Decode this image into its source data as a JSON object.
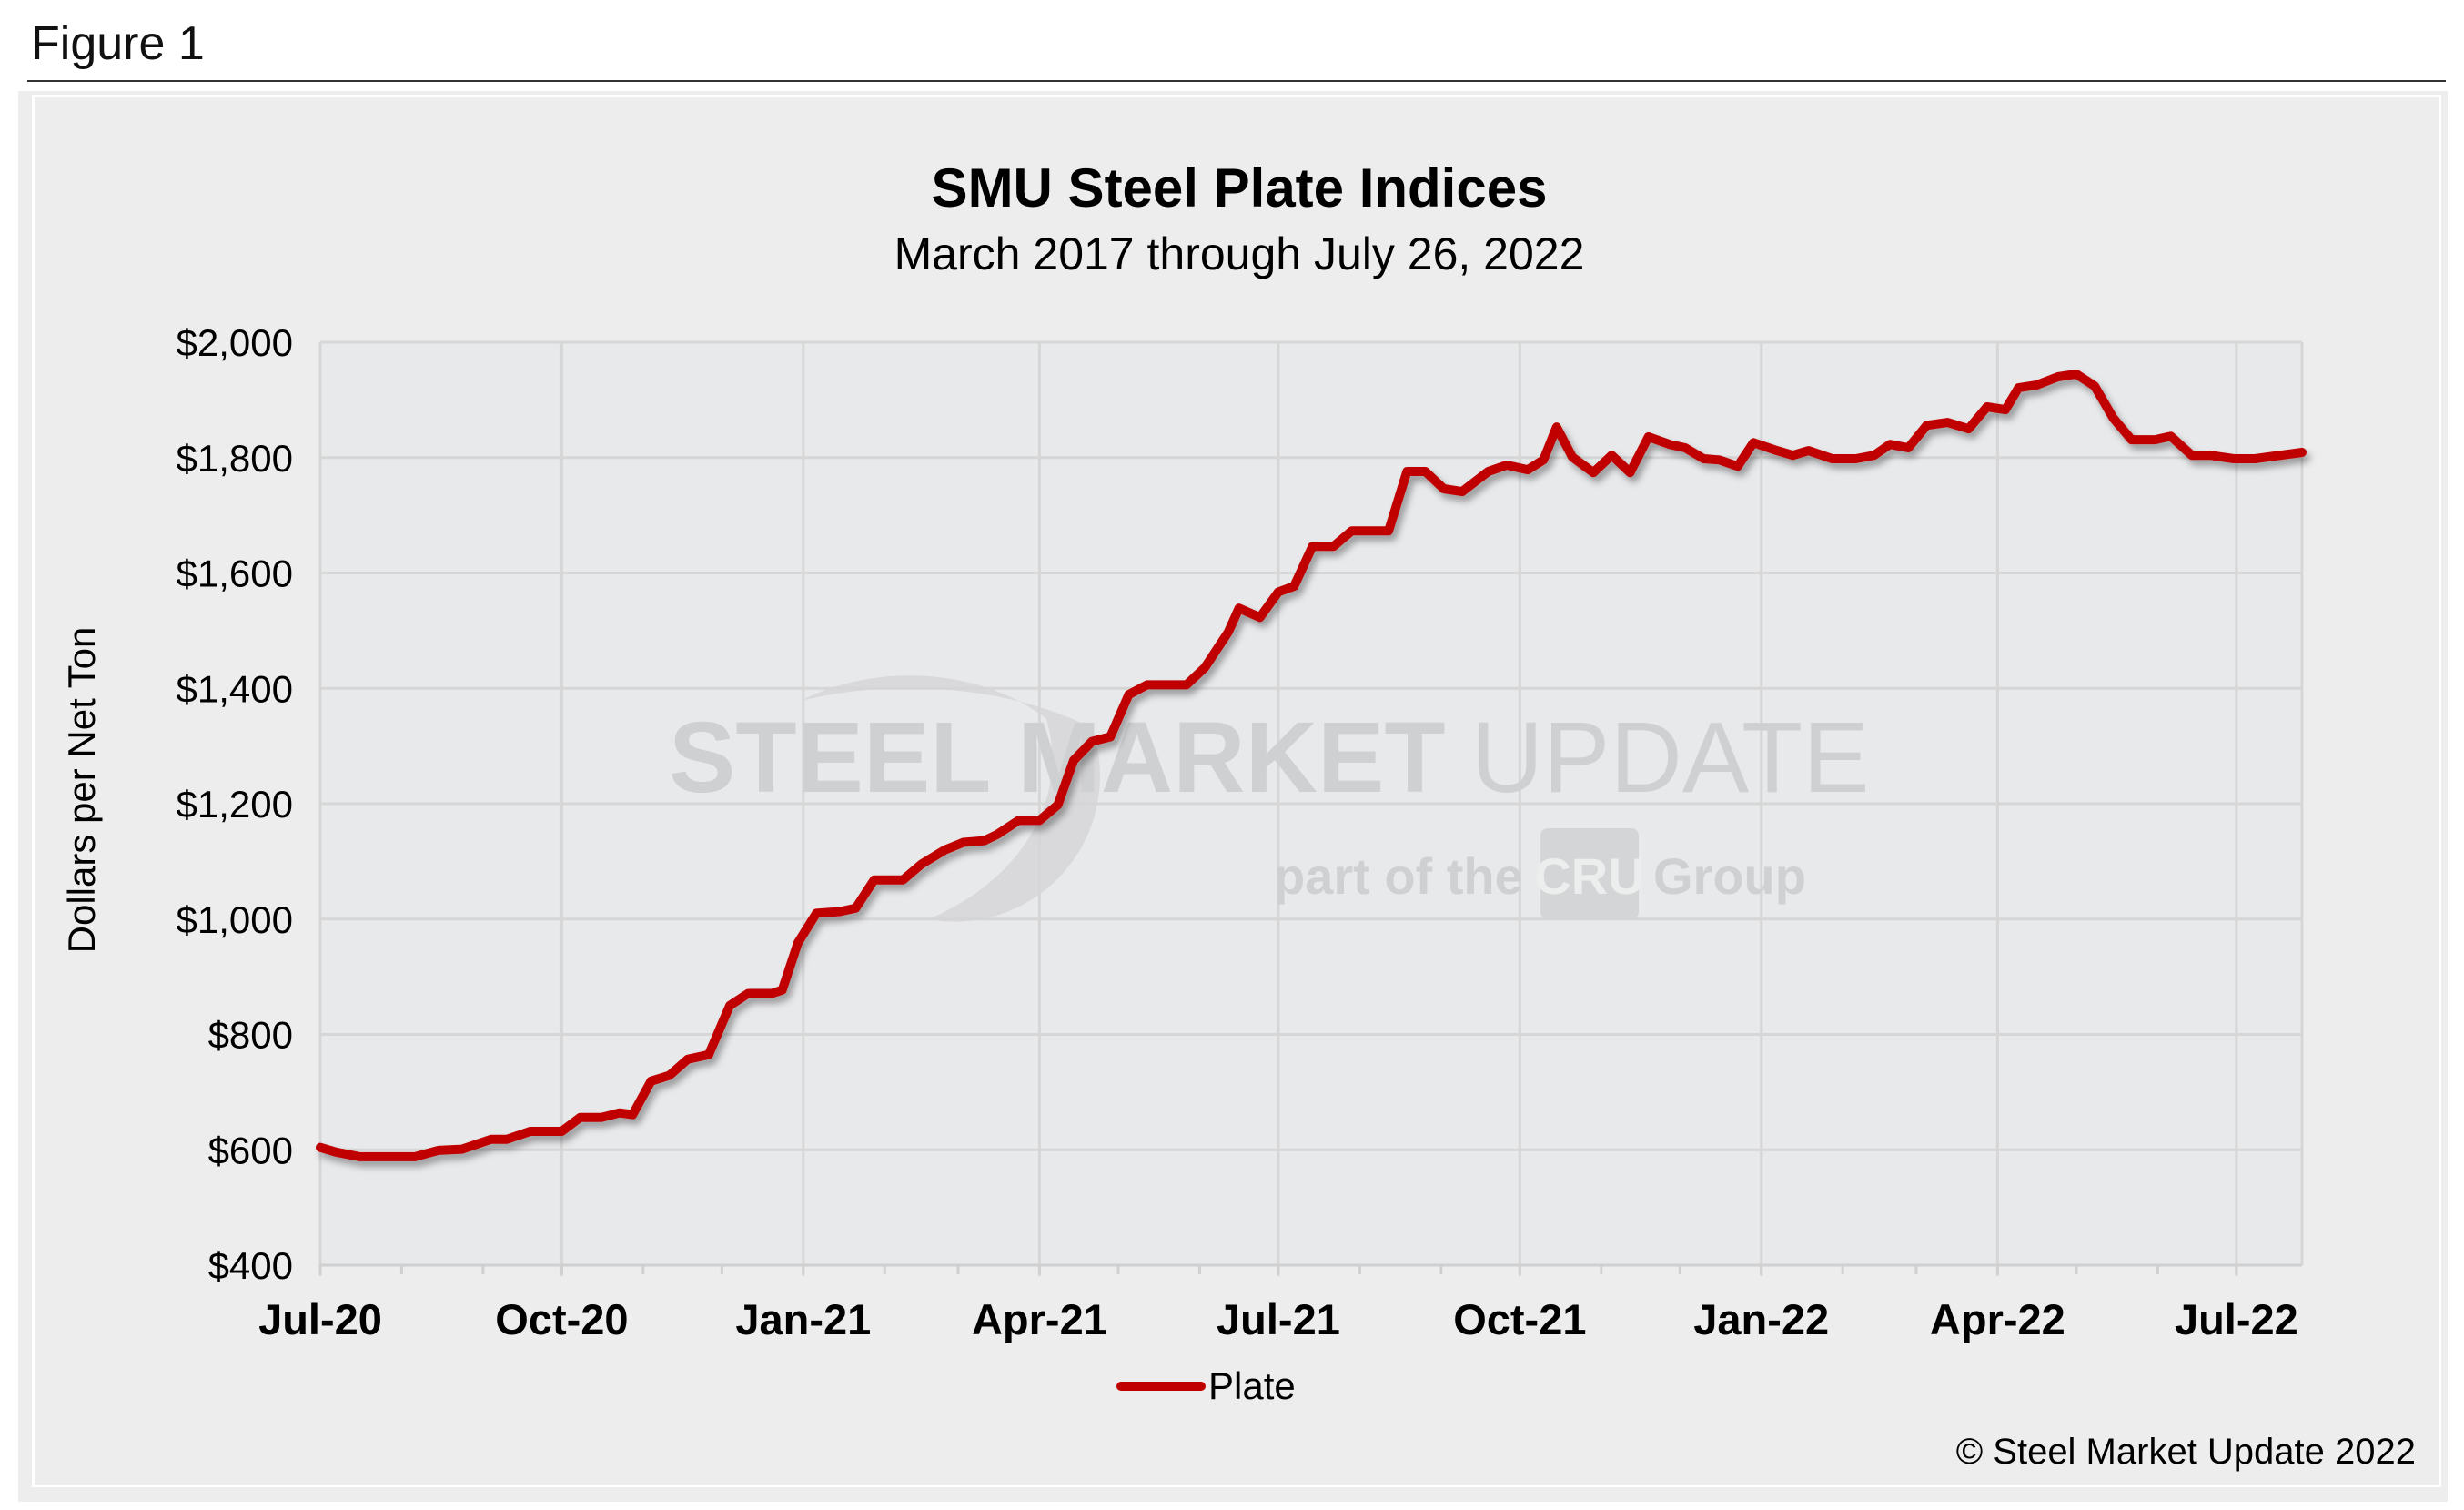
{
  "figure_label": "Figure 1",
  "copyright": "© Steel Market Update 2022",
  "watermark": {
    "line1_bold": "STEEL MARKET",
    "line1_light": "UPDATE",
    "line2_a": "part of the",
    "line2_logo": "CRU",
    "line2_b": "Group"
  },
  "colors": {
    "series": "#c00000",
    "plot_bg": "#e8e9eb",
    "frame_bg": "#ededed",
    "grid": "#d6d6d6"
  },
  "chart_data": {
    "type": "line",
    "title": "SMU Steel Plate Indices",
    "subtitle": "March 2017 through July 26, 2022",
    "xlabel": "",
    "ylabel": "Dollars per Net Ton",
    "ylim": [
      400,
      2000
    ],
    "yticks": [
      400,
      600,
      800,
      1000,
      1200,
      1400,
      1600,
      1800,
      2000
    ],
    "ytick_labels": [
      "$400",
      "$600",
      "$800",
      "$1,000",
      "$1,200",
      "$1,400",
      "$1,600",
      "$1,800",
      "$2,000"
    ],
    "xlim": [
      "2020-07-01",
      "2022-07-26"
    ],
    "xticks": [
      "2020-07-01",
      "2020-10-01",
      "2021-01-01",
      "2021-04-01",
      "2021-07-01",
      "2021-10-01",
      "2022-01-01",
      "2022-04-01",
      "2022-07-01"
    ],
    "xtick_labels": [
      "Jul-20",
      "Oct-20",
      "Jan-21",
      "Apr-21",
      "Jul-21",
      "Oct-21",
      "Jan-22",
      "Apr-22",
      "Jul-22"
    ],
    "grid": true,
    "legend": "bottom-center",
    "series": [
      {
        "name": "Plate",
        "color": "#c00000",
        "points": [
          [
            "2020-07-01",
            604
          ],
          [
            "2020-07-07",
            596
          ],
          [
            "2020-07-16",
            588
          ],
          [
            "2020-08-06",
            588
          ],
          [
            "2020-08-15",
            599
          ],
          [
            "2020-08-24",
            601
          ],
          [
            "2020-09-04",
            618
          ],
          [
            "2020-09-10",
            618
          ],
          [
            "2020-09-19",
            632
          ],
          [
            "2020-10-01",
            632
          ],
          [
            "2020-10-08",
            656
          ],
          [
            "2020-10-16",
            656
          ],
          [
            "2020-10-23",
            664
          ],
          [
            "2020-10-28",
            661
          ],
          [
            "2020-11-04",
            719
          ],
          [
            "2020-11-11",
            729
          ],
          [
            "2020-11-18",
            757
          ],
          [
            "2020-11-26",
            765
          ],
          [
            "2020-12-04",
            850
          ],
          [
            "2020-12-11",
            871
          ],
          [
            "2020-12-20",
            871
          ],
          [
            "2020-12-24",
            877
          ],
          [
            "2020-12-30",
            959
          ],
          [
            "2021-01-06",
            1010
          ],
          [
            "2021-01-15",
            1013
          ],
          [
            "2021-01-21",
            1019
          ],
          [
            "2021-01-28",
            1068
          ],
          [
            "2021-02-08",
            1068
          ],
          [
            "2021-02-15",
            1095
          ],
          [
            "2021-02-24",
            1120
          ],
          [
            "2021-03-03",
            1133
          ],
          [
            "2021-03-11",
            1136
          ],
          [
            "2021-03-16",
            1147
          ],
          [
            "2021-03-24",
            1171
          ],
          [
            "2021-04-01",
            1171
          ],
          [
            "2021-04-08",
            1198
          ],
          [
            "2021-04-14",
            1275
          ],
          [
            "2021-04-21",
            1308
          ],
          [
            "2021-04-28",
            1316
          ],
          [
            "2021-05-05",
            1389
          ],
          [
            "2021-05-12",
            1406
          ],
          [
            "2021-05-27",
            1406
          ],
          [
            "2021-06-03",
            1436
          ],
          [
            "2021-06-12",
            1498
          ],
          [
            "2021-06-16",
            1539
          ],
          [
            "2021-06-24",
            1523
          ],
          [
            "2021-07-01",
            1567
          ],
          [
            "2021-07-07",
            1577
          ],
          [
            "2021-07-14",
            1646
          ],
          [
            "2021-07-22",
            1646
          ],
          [
            "2021-07-29",
            1673
          ],
          [
            "2021-08-12",
            1673
          ],
          [
            "2021-08-19",
            1776
          ],
          [
            "2021-08-26",
            1776
          ],
          [
            "2021-09-02",
            1746
          ],
          [
            "2021-09-09",
            1741
          ],
          [
            "2021-09-19",
            1776
          ],
          [
            "2021-09-26",
            1787
          ],
          [
            "2021-10-04",
            1779
          ],
          [
            "2021-10-10",
            1796
          ],
          [
            "2021-10-15",
            1853
          ],
          [
            "2021-10-21",
            1801
          ],
          [
            "2021-10-29",
            1774
          ],
          [
            "2021-11-05",
            1804
          ],
          [
            "2021-11-12",
            1774
          ],
          [
            "2021-11-19",
            1836
          ],
          [
            "2021-11-27",
            1823
          ],
          [
            "2021-12-03",
            1817
          ],
          [
            "2021-12-10",
            1798
          ],
          [
            "2021-12-16",
            1796
          ],
          [
            "2021-12-23",
            1785
          ],
          [
            "2021-12-29",
            1826
          ],
          [
            "2022-01-07",
            1812
          ],
          [
            "2022-01-13",
            1804
          ],
          [
            "2022-01-19",
            1812
          ],
          [
            "2022-01-28",
            1798
          ],
          [
            "2022-02-06",
            1798
          ],
          [
            "2022-02-13",
            1804
          ],
          [
            "2022-02-19",
            1823
          ],
          [
            "2022-02-26",
            1817
          ],
          [
            "2022-03-05",
            1856
          ],
          [
            "2022-03-13",
            1861
          ],
          [
            "2022-03-21",
            1850
          ],
          [
            "2022-03-28",
            1888
          ],
          [
            "2022-04-04",
            1883
          ],
          [
            "2022-04-09",
            1921
          ],
          [
            "2022-04-16",
            1926
          ],
          [
            "2022-04-24",
            1940
          ],
          [
            "2022-05-01",
            1945
          ],
          [
            "2022-05-08",
            1924
          ],
          [
            "2022-05-15",
            1869
          ],
          [
            "2022-05-22",
            1831
          ],
          [
            "2022-05-31",
            1831
          ],
          [
            "2022-06-06",
            1837
          ],
          [
            "2022-06-14",
            1804
          ],
          [
            "2022-06-21",
            1804
          ],
          [
            "2022-06-30",
            1798
          ],
          [
            "2022-07-08",
            1798
          ],
          [
            "2022-07-26",
            1809
          ]
        ]
      }
    ]
  }
}
